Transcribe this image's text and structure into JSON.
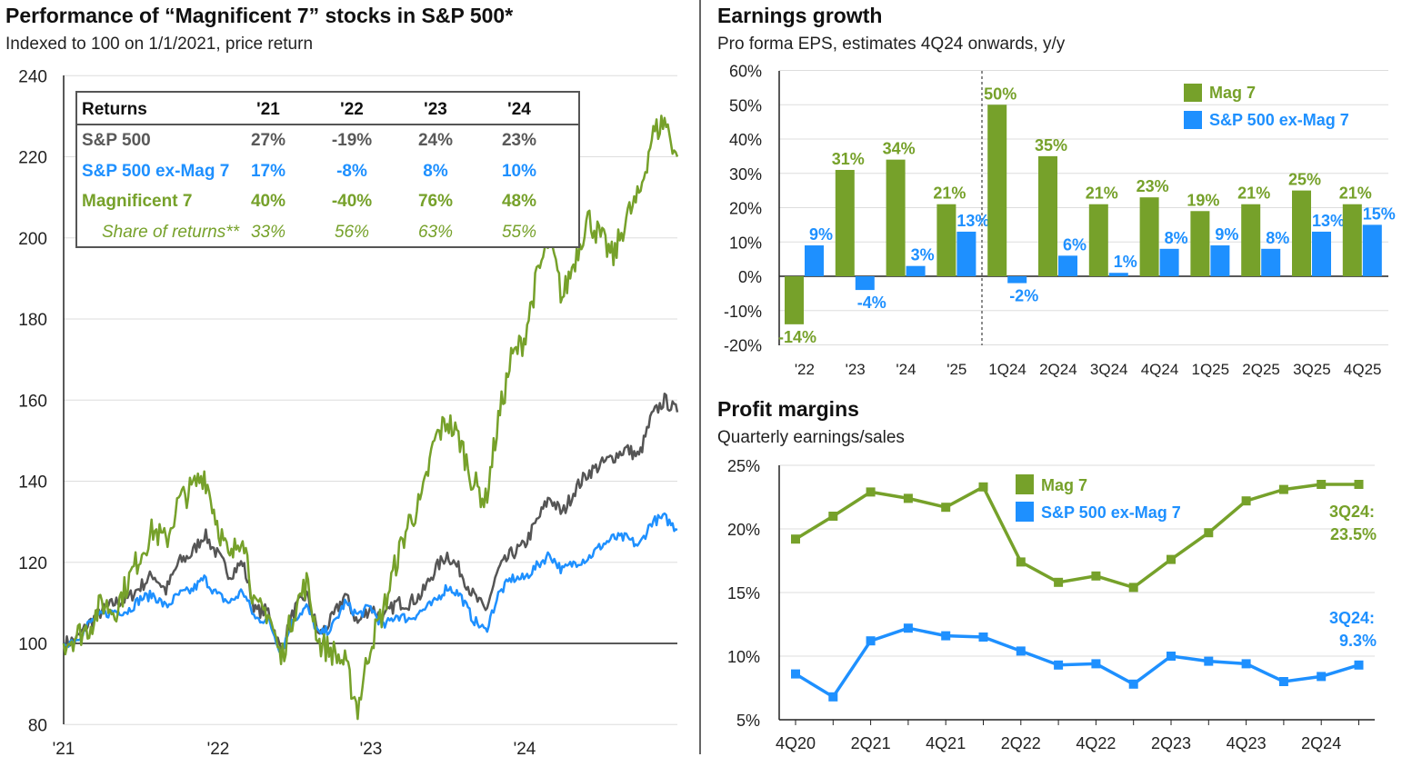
{
  "left": {
    "title": "Performance of “Magnificent 7” stocks in S&P 500*",
    "subtitle": "Indexed to 100 on 1/1/2021, price return"
  },
  "table": {
    "header": [
      "Returns",
      "'21",
      "'22",
      "'23",
      "'24"
    ],
    "rows": [
      {
        "label": "S&P 500",
        "values": [
          "27%",
          "-19%",
          "24%",
          "23%"
        ],
        "color": "#595959"
      },
      {
        "label": "S&P 500 ex-Mag 7",
        "values": [
          "17%",
          "-8%",
          "8%",
          "10%"
        ],
        "color": "#1e90ff"
      },
      {
        "label": "Magnificent 7",
        "values": [
          "40%",
          "-40%",
          "76%",
          "48%"
        ],
        "color": "#76a12a"
      },
      {
        "label": "Share of returns**",
        "values": [
          "33%",
          "56%",
          "63%",
          "55%"
        ],
        "color": "#76a12a"
      }
    ]
  },
  "right_top": {
    "title": "Earnings growth",
    "subtitle": "Pro forma EPS, estimates 4Q24 onwards, y/y"
  },
  "right_bottom": {
    "title": "Profit margins",
    "subtitle": "Quarterly earnings/sales"
  },
  "colors": {
    "mag7": "#76a12a",
    "ex": "#1e90ff",
    "sp": "#555555"
  },
  "chart_data": [
    {
      "type": "line",
      "title": "Performance of “Magnificent 7” stocks in S&P 500*",
      "ylim": [
        80,
        240
      ],
      "yticks": [
        "80",
        "100",
        "120",
        "140",
        "160",
        "180",
        "200",
        "220",
        "240"
      ],
      "xticks": [
        "'21",
        "'22",
        "'23",
        "'24"
      ],
      "x_note": "monthly approx, Jan 2021 - Dec 2024",
      "series": [
        {
          "name": "S&P 500",
          "color": "#555555",
          "values": [
            100,
            101,
            105,
            108,
            110,
            111,
            114,
            117,
            113,
            120,
            122,
            127,
            122,
            117,
            120,
            108,
            108,
            98,
            108,
            112,
            102,
            106,
            112,
            105,
            109,
            106,
            110,
            110,
            112,
            118,
            122,
            118,
            112,
            108,
            118,
            122,
            124,
            130,
            136,
            132,
            138,
            142,
            144,
            146,
            148,
            146,
            156,
            160,
            157
          ]
        },
        {
          "name": "Magnificent 7",
          "color": "#76a12a",
          "values": [
            100,
            102,
            104,
            110,
            108,
            115,
            122,
            128,
            125,
            135,
            138,
            142,
            130,
            120,
            128,
            108,
            108,
            96,
            108,
            115,
            100,
            98,
            95,
            84,
            100,
            108,
            120,
            130,
            135,
            150,
            155,
            150,
            140,
            135,
            155,
            170,
            175,
            190,
            200,
            185,
            195,
            205,
            200,
            195,
            205,
            210,
            225,
            229,
            220
          ]
        },
        {
          "name": "S&P 500 ex-Mag 7",
          "color": "#1e90ff",
          "values": [
            100,
            101,
            105,
            107,
            108,
            108,
            111,
            112,
            109,
            112,
            113,
            116,
            112,
            110,
            113,
            106,
            106,
            98,
            106,
            109,
            102,
            104,
            110,
            107,
            109,
            104,
            107,
            106,
            108,
            110,
            114,
            112,
            106,
            103,
            112,
            116,
            116,
            119,
            122,
            118,
            120,
            121,
            124,
            126,
            126,
            124,
            130,
            131,
            128
          ]
        }
      ]
    },
    {
      "type": "bar",
      "title": "Earnings growth",
      "ylim": [
        -20,
        60
      ],
      "yticks": [
        "-20%",
        "-10%",
        "0%",
        "10%",
        "20%",
        "30%",
        "40%",
        "50%",
        "60%"
      ],
      "categories": [
        "'22",
        "'23",
        "'24",
        "'25",
        "1Q24",
        "2Q24",
        "3Q24",
        "4Q24",
        "1Q25",
        "2Q25",
        "3Q25",
        "4Q25"
      ],
      "series": [
        {
          "name": "Mag 7",
          "color": "#76a12a",
          "values": [
            -14,
            31,
            34,
            21,
            50,
            35,
            21,
            23,
            19,
            21,
            25,
            21
          ],
          "labels": [
            "-14%",
            "31%",
            "34%",
            "21%",
            "50%",
            "35%",
            "21%",
            "23%",
            "19%",
            "21%",
            "25%",
            "21%"
          ]
        },
        {
          "name": "S&P 500 ex-Mag 7",
          "color": "#1e90ff",
          "values": [
            9,
            -4,
            3,
            13,
            -2,
            6,
            1,
            8,
            9,
            8,
            13,
            15
          ],
          "labels": [
            "9%",
            "-4%",
            "3%",
            "13%",
            "-2%",
            "6%",
            "1%",
            "8%",
            "9%",
            "8%",
            "13%",
            "15%"
          ]
        }
      ],
      "legend": "top-right"
    },
    {
      "type": "line",
      "title": "Profit margins",
      "ylim": [
        5,
        25
      ],
      "yticks": [
        "5%",
        "10%",
        "15%",
        "20%",
        "25%"
      ],
      "categories": [
        "4Q20",
        "1Q21",
        "2Q21",
        "3Q21",
        "4Q21",
        "1Q22",
        "2Q22",
        "3Q22",
        "4Q22",
        "1Q23",
        "2Q23",
        "3Q23",
        "4Q23",
        "1Q24",
        "2Q24",
        "3Q24"
      ],
      "xticks": [
        "4Q20",
        "2Q21",
        "4Q21",
        "2Q22",
        "4Q22",
        "2Q23",
        "4Q23",
        "2Q24"
      ],
      "series": [
        {
          "name": "Mag 7",
          "color": "#76a12a",
          "values": [
            19.2,
            21.0,
            22.9,
            22.4,
            21.7,
            23.3,
            17.4,
            15.8,
            16.3,
            15.4,
            17.6,
            19.7,
            22.2,
            23.1,
            23.5,
            23.5
          ]
        },
        {
          "name": "S&P 500 ex-Mag 7",
          "color": "#1e90ff",
          "values": [
            8.6,
            6.8,
            11.2,
            12.2,
            11.6,
            11.5,
            10.4,
            9.3,
            9.4,
            7.8,
            10.0,
            9.6,
            9.4,
            8.0,
            8.4,
            9.3
          ]
        }
      ],
      "annotations": [
        {
          "line1": "3Q24:",
          "line2": "23.5%"
        },
        {
          "line1": "3Q24:",
          "line2": "9.3%"
        }
      ],
      "legend": "top"
    }
  ]
}
